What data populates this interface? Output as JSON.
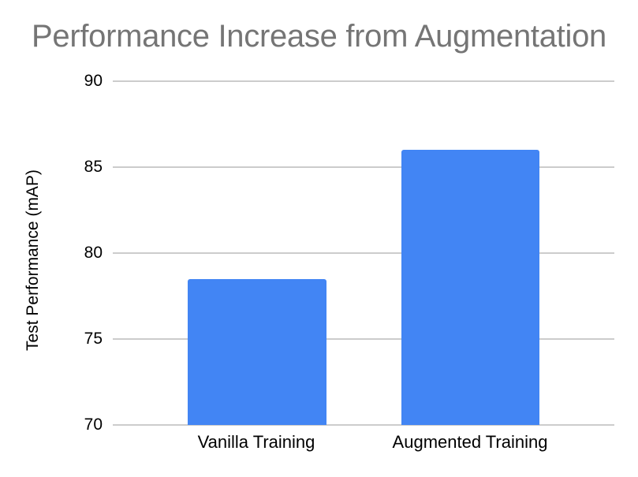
{
  "chart_data": {
    "type": "bar",
    "title": "Performance Increase from Augmentation",
    "xlabel": "",
    "ylabel": "Test Performance (mAP)",
    "categories": [
      "Vanilla Training",
      "Augmented Training"
    ],
    "values": [
      78.5,
      86
    ],
    "ylim": [
      70,
      90
    ],
    "yticks": [
      "70",
      "75",
      "80",
      "85",
      "90"
    ],
    "grid": true,
    "legend": "none",
    "bar_color": "#4285f4"
  }
}
